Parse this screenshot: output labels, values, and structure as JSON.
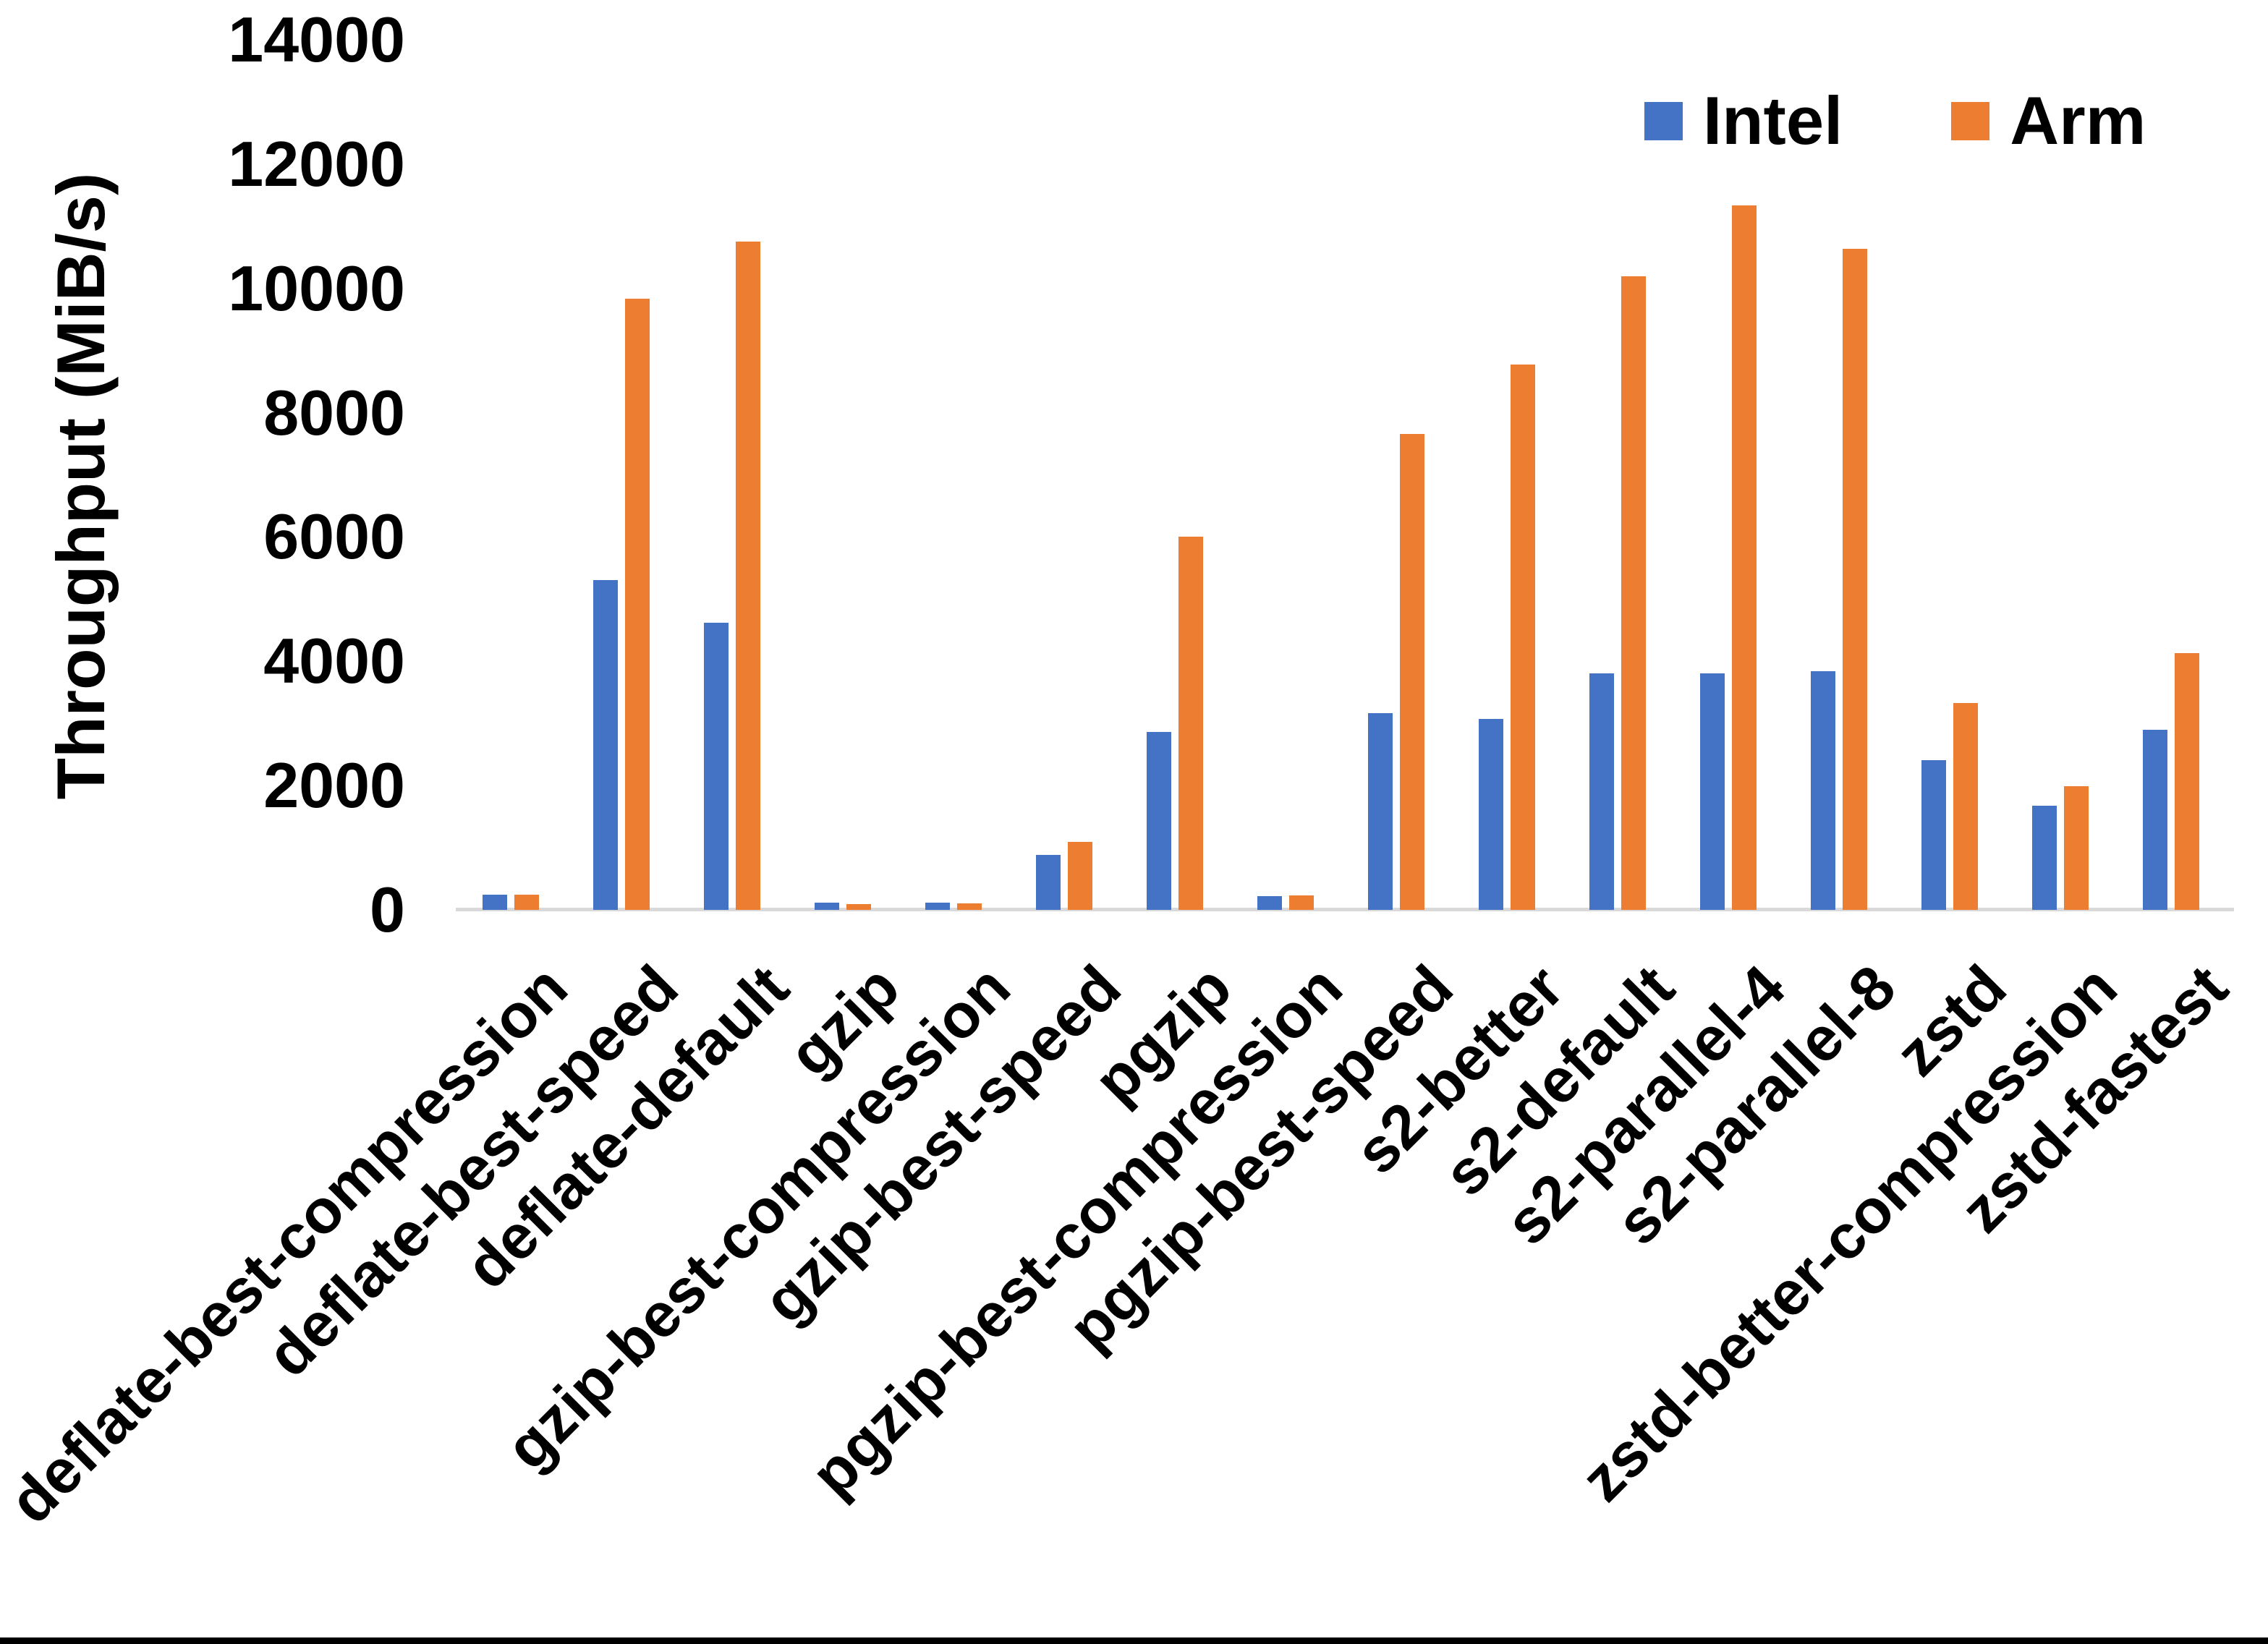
{
  "figure": {
    "background_color": "#FFFFFF",
    "bottom_border_color": "#000000",
    "text_color": "#000000"
  },
  "chart_data": {
    "type": "bar",
    "title": "",
    "xlabel": "",
    "ylabel": "Throughput (MiB/s)",
    "ylim": [
      0,
      14000
    ],
    "ytick_step": 2000,
    "yticks": [
      0,
      2000,
      4000,
      6000,
      8000,
      10000,
      12000,
      14000
    ],
    "grid": false,
    "legend_position": "top-right",
    "axis_line_color": "#D9D9D9",
    "categories": [
      "deflate-best-compression",
      "deflate-best-speed",
      "deflate-default",
      "gzip",
      "gzip-best-compression",
      "gzip-best-speed",
      "pgzip",
      "pgzip-best-compression",
      "pgzip-best-speed",
      "s2-better",
      "s2-default",
      "s2-parallel-4",
      "s2-parallel-8",
      "zstd",
      "zstd-better-compression",
      "zstd-fastest"
    ],
    "series": [
      {
        "name": "Intel",
        "color": "#4472C4",
        "values": [
          240,
          5310,
          4620,
          120,
          120,
          880,
          2860,
          220,
          3160,
          3070,
          3800,
          3800,
          3840,
          2410,
          1680,
          2900
        ]
      },
      {
        "name": "Arm",
        "color": "#ED7D31",
        "values": [
          240,
          9830,
          10750,
          90,
          110,
          1090,
          6010,
          230,
          7660,
          8770,
          10200,
          11340,
          10640,
          3330,
          1990,
          4130
        ]
      }
    ]
  }
}
